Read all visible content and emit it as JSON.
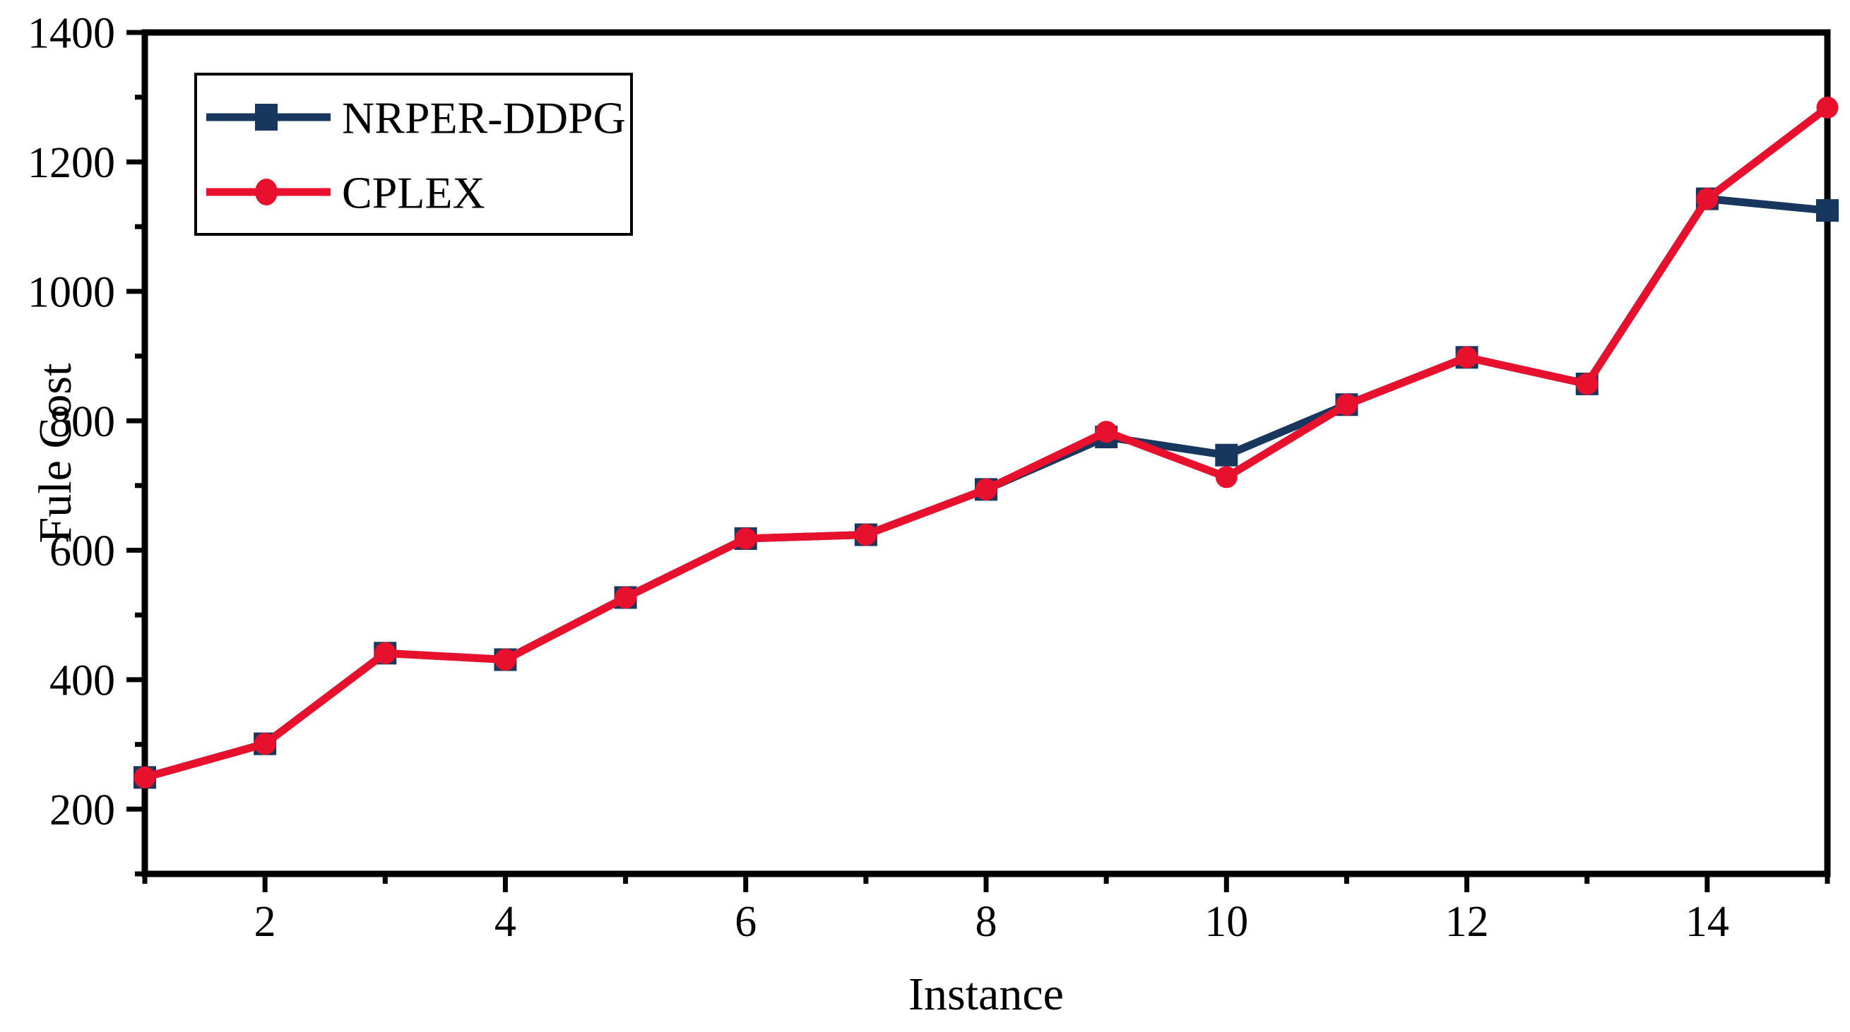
{
  "chart_data": {
    "type": "line",
    "title": "",
    "xlabel": "Instance",
    "ylabel": "Fule Cost",
    "x": [
      1,
      2,
      3,
      4,
      5,
      6,
      7,
      8,
      9,
      10,
      11,
      12,
      13,
      14,
      15
    ],
    "series": [
      {
        "name": "NRPER-DDPG",
        "color": "#17375E",
        "marker": "square",
        "values": [
          249,
          301,
          441,
          431,
          527,
          618,
          624,
          694,
          775,
          747,
          825,
          898,
          857,
          1143,
          1125
        ]
      },
      {
        "name": "CPLEX",
        "color": "#E8112D",
        "marker": "circle",
        "values": [
          249,
          301,
          441,
          431,
          527,
          618,
          624,
          694,
          783,
          713,
          825,
          898,
          857,
          1143,
          1284
        ]
      }
    ],
    "xlim": [
      1,
      15
    ],
    "ylim": [
      100,
      1400
    ],
    "x_major_ticks": [
      2,
      4,
      6,
      8,
      10,
      12,
      14
    ],
    "x_minor_ticks": [
      1,
      3,
      5,
      7,
      9,
      11,
      13,
      15
    ],
    "y_major_ticks": [
      200,
      400,
      600,
      800,
      1000,
      1200,
      1400
    ],
    "y_minor_ticks": [
      100,
      300,
      500,
      700,
      900,
      1100,
      1300
    ],
    "grid": false,
    "legend_position": "top-left",
    "background_color": "#FFFFFF",
    "axis_color": "#000000"
  }
}
